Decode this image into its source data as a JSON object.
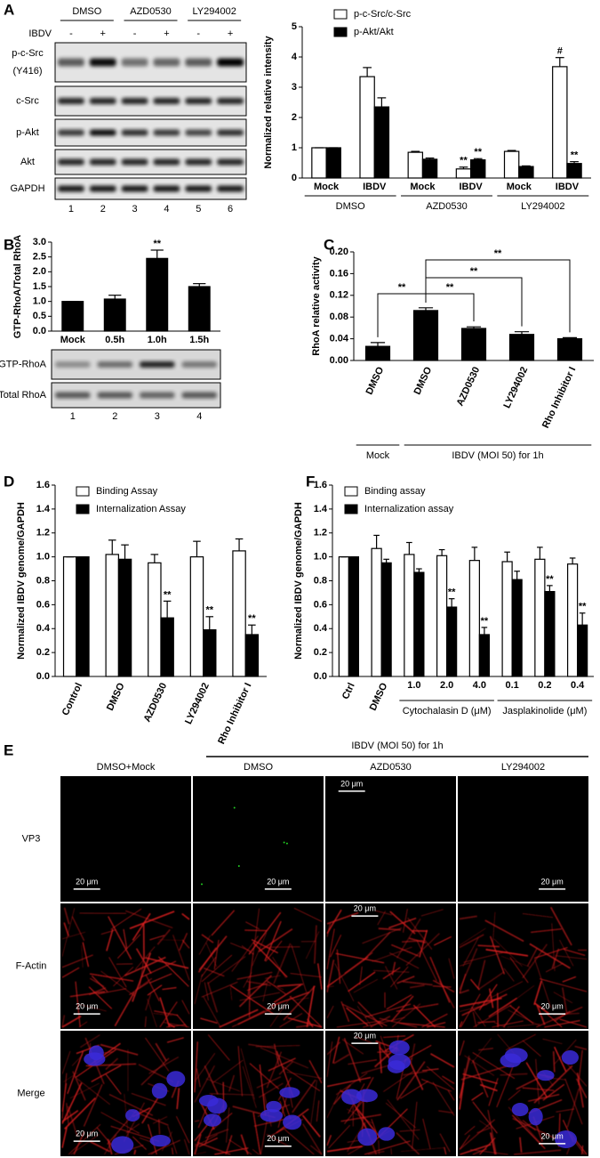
{
  "panel_labels": [
    "A",
    "B",
    "C",
    "D",
    "E",
    "F"
  ],
  "blot_a": {
    "conditions": [
      "DMSO",
      "AZD0530",
      "LY294002"
    ],
    "treatment_label": "IBDV",
    "treatment": [
      "-",
      "+",
      "-",
      "+",
      "-",
      "+"
    ],
    "rows": [
      "p-c-Src",
      "c-Src",
      "p-Akt",
      "Akt",
      "GAPDH"
    ],
    "row_sublabel": "(Y416)",
    "lanes": [
      1,
      2,
      3,
      4,
      5,
      6
    ]
  },
  "blot_b": {
    "rows": [
      "GTP-RhoA",
      "Total RhoA"
    ],
    "lanes": [
      1,
      2,
      3,
      4
    ]
  },
  "chart_data": [
    {
      "type": "bar",
      "y_label": "Normalized relative intensity",
      "categories": [
        "Mock",
        "IBDV",
        "Mock",
        "IBDV",
        "Mock",
        "IBDV"
      ],
      "groups": [
        "DMSO",
        "AZD0530",
        "LY294002"
      ],
      "series": [
        {
          "name": "p-c-Src/c-Src",
          "color": "#ffffff",
          "values": [
            1,
            3.35,
            0.85,
            0.3,
            0.88,
            3.68
          ],
          "errors": [
            0,
            0.3,
            0.03,
            0.06,
            0.03,
            0.3
          ],
          "annotations": [
            null,
            null,
            null,
            "**",
            null,
            "#"
          ]
        },
        {
          "name": "p-Akt/Akt",
          "color": "#000000",
          "values": [
            1,
            2.35,
            0.62,
            0.6,
            0.38,
            0.48
          ],
          "errors": [
            0,
            0.3,
            0.04,
            0.04,
            0.02,
            0.06
          ],
          "annotations": [
            null,
            null,
            null,
            "**",
            null,
            "**"
          ]
        }
      ],
      "ylim": [
        0,
        5
      ],
      "yticks": [
        0,
        1,
        2,
        3,
        4,
        5
      ]
    },
    {
      "type": "bar",
      "y_label": "GTP-RhoA/Total RhoA",
      "categories": [
        "Mock",
        "0.5h",
        "1.0h",
        "1.5h"
      ],
      "values": [
        1.0,
        1.08,
        2.45,
        1.5
      ],
      "errors": [
        0,
        0.13,
        0.28,
        0.1
      ],
      "annotations": [
        null,
        null,
        "**",
        null
      ],
      "color": "#000000",
      "ylim": [
        0,
        3
      ],
      "yticks": [
        {
          "value": 0,
          "label": "0.0"
        },
        0.5,
        {
          "value": 1,
          "label": "1.0"
        },
        1.5,
        {
          "value": 2,
          "label": "2.0"
        },
        2.5,
        {
          "value": 3,
          "label": "3.0"
        }
      ]
    },
    {
      "type": "bar",
      "y_label": "RhoA relative activity",
      "categories": [
        "DMSO",
        "DMSO",
        "AZD0530",
        "LY294002",
        "Rho Inhibitor I"
      ],
      "groups": [
        "Mock",
        "IBDV (MOI 50) for 1h"
      ],
      "values": [
        0.026,
        0.092,
        0.059,
        0.048,
        0.04
      ],
      "errors": [
        0.007,
        0.005,
        0.003,
        0.005,
        0.002
      ],
      "color": "#000000",
      "significance": [
        "**",
        "**",
        "**",
        "**"
      ],
      "ylim": [
        0,
        0.2
      ],
      "yticks": [
        {
          "value": 0,
          "label": "0.00"
        },
        0.04,
        0.08,
        0.12,
        0.16,
        {
          "value": 0.2,
          "label": "0.20"
        }
      ]
    },
    {
      "type": "bar",
      "y_label": "Normalized IBDV genome/GAPDH",
      "categories": [
        "Control",
        "DMSO",
        "AZD0530",
        "LY294002",
        "Rho Inhibitor I"
      ],
      "series": [
        {
          "name": "Binding Assay",
          "color": "#ffffff",
          "values": [
            1,
            1.02,
            0.95,
            1.0,
            1.05
          ],
          "errors": [
            0,
            0.12,
            0.07,
            0.13,
            0.1
          ],
          "annotations": [
            null,
            null,
            null,
            null,
            null
          ]
        },
        {
          "name": "Internalization Assay",
          "color": "#000000",
          "values": [
            1,
            0.98,
            0.49,
            0.39,
            0.35
          ],
          "errors": [
            0,
            0.12,
            0.14,
            0.11,
            0.08
          ],
          "annotations": [
            null,
            null,
            "**",
            "**",
            "**"
          ]
        }
      ],
      "ylim": [
        0,
        1.6
      ],
      "yticks": [
        {
          "value": 0,
          "label": "0.0"
        },
        0.2,
        0.4,
        0.6,
        0.8,
        {
          "value": 1,
          "label": "1.0"
        },
        1.2,
        1.4,
        1.6
      ]
    },
    {
      "type": "bar",
      "y_label": "Normalized IBDV genome/GAPDH",
      "categories": [
        "Ctrl",
        "DMSO",
        "1.0",
        "2.0",
        "4.0",
        "0.1",
        "0.2",
        "0.4"
      ],
      "groups": [
        "Cytochalasin D (μM)",
        "Jasplakinolide (μM)"
      ],
      "series": [
        {
          "name": "Binding assay",
          "color": "#ffffff",
          "values": [
            1,
            1.07,
            1.02,
            1.01,
            0.97,
            0.96,
            0.98,
            0.94
          ],
          "errors": [
            0,
            0.11,
            0.1,
            0.05,
            0.11,
            0.08,
            0.1,
            0.05
          ],
          "annotations": [
            null,
            null,
            null,
            null,
            null,
            null,
            null,
            null
          ]
        },
        {
          "name": "Internalization assay",
          "color": "#000000",
          "values": [
            1,
            0.95,
            0.87,
            0.58,
            0.35,
            0.81,
            0.71,
            0.43
          ],
          "errors": [
            0,
            0.03,
            0.03,
            0.07,
            0.06,
            0.07,
            0.05,
            0.1
          ],
          "annotations": [
            null,
            null,
            null,
            "**",
            "**",
            null,
            "**",
            "**"
          ]
        }
      ],
      "ylim": [
        0,
        1.6
      ],
      "yticks": [
        {
          "value": 0,
          "label": "0.0"
        },
        0.2,
        0.4,
        0.6,
        0.8,
        {
          "value": 1,
          "label": "1.0"
        },
        1.2,
        1.4,
        1.6
      ]
    }
  ],
  "microscopy": {
    "header": "IBDV (MOI 50) for 1h",
    "columns": [
      "DMSO+Mock",
      "DMSO",
      "AZD0530",
      "LY294002"
    ],
    "rows": [
      "VP3",
      "F-Actin",
      "Merge"
    ],
    "scale_bar": "20 μm"
  }
}
